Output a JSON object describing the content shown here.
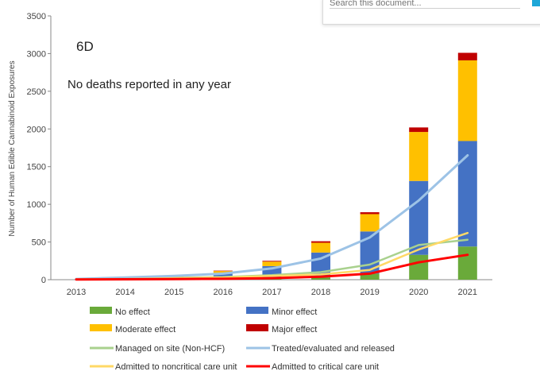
{
  "search": {
    "placeholder": "Search this document..."
  },
  "chart_data": {
    "type": "bar",
    "panel_label": "6D",
    "annotation": "No deaths reported in any year",
    "ylabel": "Number of Human Edible Cannabinoid Exposures",
    "xlabel": "",
    "ylim": [
      0,
      3500
    ],
    "yticks": [
      0,
      500,
      1000,
      1500,
      2000,
      2500,
      3000,
      3500
    ],
    "categories": [
      "2013",
      "2014",
      "2015",
      "2016",
      "2017",
      "2018",
      "2019",
      "2020",
      "2021"
    ],
    "stacked_series": [
      {
        "name": "No effect",
        "color": "#6aaa3a",
        "values": [
          0,
          2,
          5,
          10,
          20,
          30,
          80,
          330,
          440
        ]
      },
      {
        "name": "Minor effect",
        "color": "#4472c4",
        "values": [
          0,
          10,
          30,
          70,
          160,
          330,
          560,
          980,
          1400
        ]
      },
      {
        "name": "Moderate effect",
        "color": "#ffc000",
        "values": [
          0,
          3,
          15,
          35,
          60,
          130,
          230,
          650,
          1070
        ]
      },
      {
        "name": "Major effect",
        "color": "#c00000",
        "values": [
          0,
          1,
          3,
          5,
          10,
          20,
          25,
          60,
          100
        ]
      }
    ],
    "line_series": [
      {
        "name": "Managed on site (Non-HCF)",
        "color": "#a9d18e",
        "values": [
          5,
          15,
          25,
          35,
          60,
          100,
          200,
          460,
          530
        ]
      },
      {
        "name": "Treated/evaluated and released",
        "color": "#9dc3e6",
        "values": [
          10,
          30,
          50,
          80,
          150,
          280,
          560,
          1050,
          1650
        ]
      },
      {
        "name": "Admitted to noncritical care unit",
        "color": "#ffd966",
        "values": [
          5,
          10,
          20,
          30,
          50,
          70,
          130,
          400,
          620
        ]
      },
      {
        "name": "Admitted to critical care unit",
        "color": "#ff0000",
        "values": [
          2,
          5,
          8,
          12,
          20,
          40,
          80,
          230,
          330
        ]
      }
    ],
    "legend_placement": "bottom",
    "grid": false
  }
}
